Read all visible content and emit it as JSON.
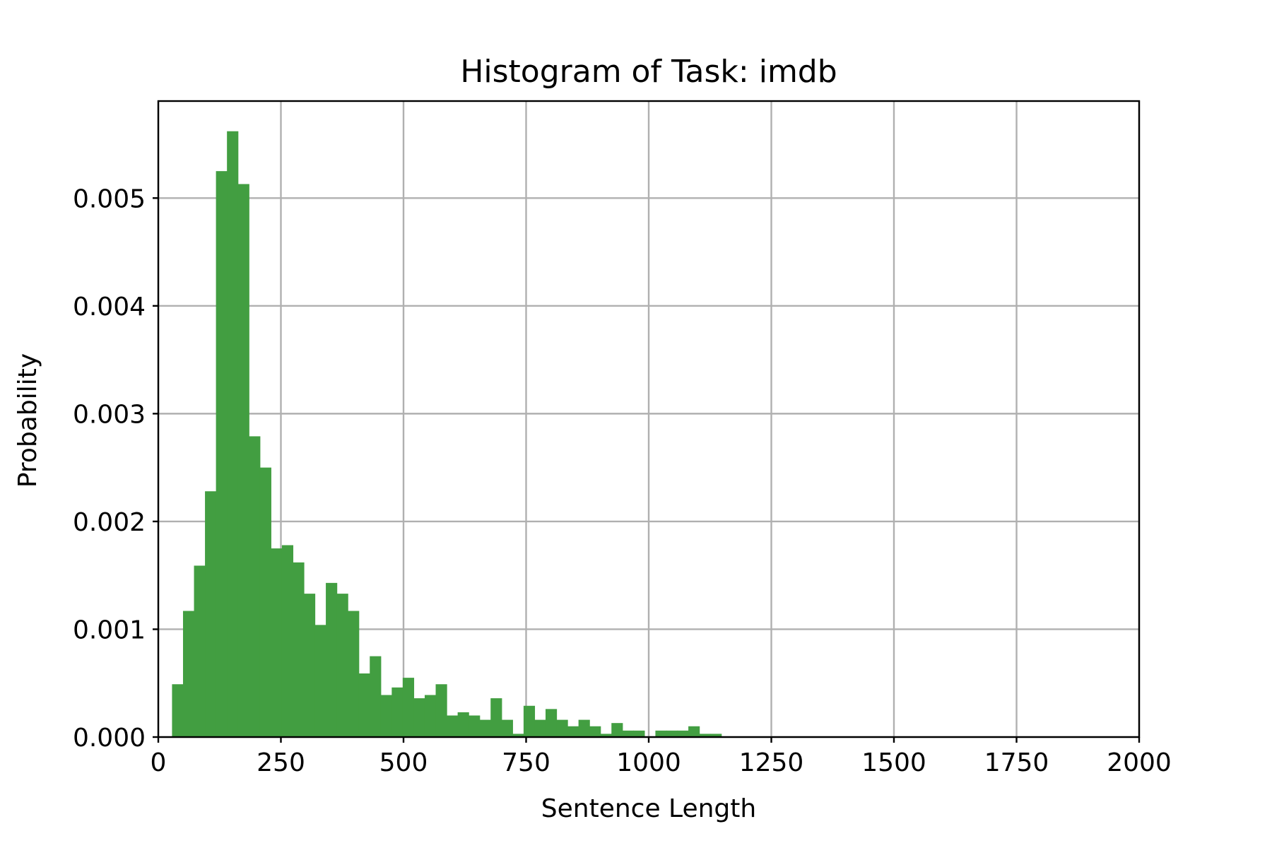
{
  "chart_data": {
    "type": "bar",
    "title": "Histogram of Task: imdb",
    "xlabel": "Sentence Length",
    "ylabel": "Probability",
    "xlim": [
      0,
      2000
    ],
    "ylim": [
      0,
      0.0059
    ],
    "xticks": [
      0,
      250,
      500,
      750,
      1000,
      1250,
      1500,
      1750,
      2000
    ],
    "xtick_labels": [
      "0",
      "250",
      "500",
      "750",
      "1000",
      "1250",
      "1500",
      "1750",
      "2000"
    ],
    "yticks": [
      0,
      0.001,
      0.002,
      0.003,
      0.004,
      0.005
    ],
    "ytick_labels": [
      "0.000",
      "0.001",
      "0.002",
      "0.003",
      "0.004",
      "0.005"
    ],
    "grid": true,
    "bar_color": "#429e41",
    "bin_start": 28,
    "bin_width": 22.4,
    "values": [
      0.00049,
      0.00117,
      0.00159,
      0.00228,
      0.00525,
      0.00562,
      0.00513,
      0.00279,
      0.0025,
      0.00175,
      0.00178,
      0.00162,
      0.00133,
      0.00104,
      0.00143,
      0.00133,
      0.00117,
      0.00059,
      0.00075,
      0.00039,
      0.00046,
      0.00055,
      0.00036,
      0.00039,
      0.00049,
      0.0002,
      0.00023,
      0.0002,
      0.00016,
      0.00036,
      0.00016,
      3e-05,
      0.00029,
      0.00016,
      0.00026,
      0.00016,
      0.0001,
      0.00016,
      0.0001,
      3e-05,
      0.00013,
      6e-05,
      6e-05,
      0.0,
      6e-05,
      6e-05,
      6e-05,
      0.0001,
      3e-05,
      3e-05
    ]
  }
}
